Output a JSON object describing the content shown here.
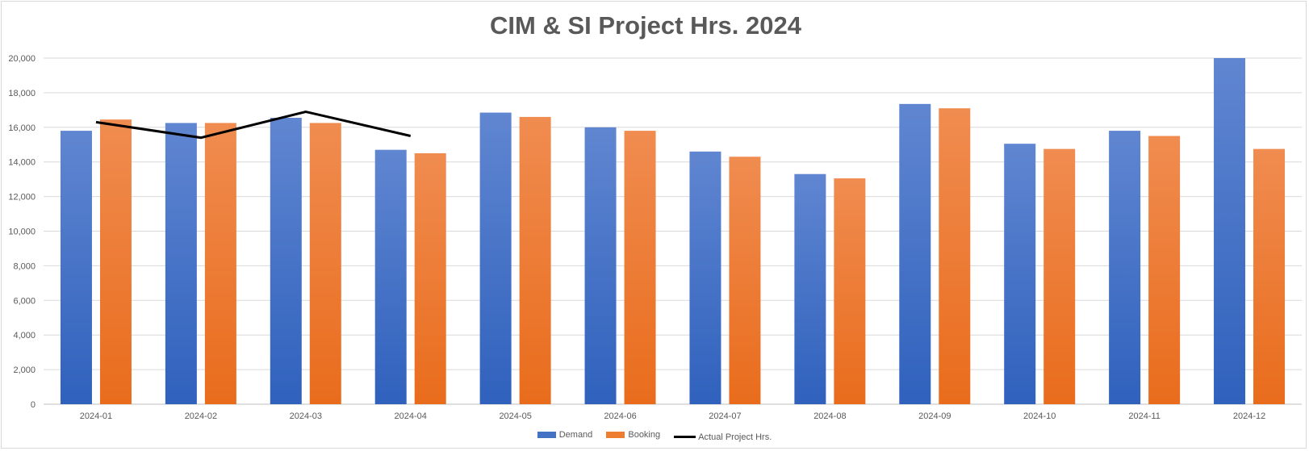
{
  "chart_data": {
    "type": "bar",
    "title": "CIM & SI Project Hrs. 2024",
    "xlabel": "",
    "ylabel": "",
    "ylim": [
      0,
      20000
    ],
    "yticks": [
      "0",
      "2,000",
      "4,000",
      "6,000",
      "8,000",
      "10,000",
      "12,000",
      "14,000",
      "16,000",
      "18,000",
      "20,000"
    ],
    "ytick_values": [
      0,
      2000,
      4000,
      6000,
      8000,
      10000,
      12000,
      14000,
      16000,
      18000,
      20000
    ],
    "grid": true,
    "legend_position": "bottom",
    "categories": [
      "2024-01",
      "2024-02",
      "2024-03",
      "2024-04",
      "2024-05",
      "2024-06",
      "2024-07",
      "2024-08",
      "2024-09",
      "2024-10",
      "2024-11",
      "2024-12"
    ],
    "series": [
      {
        "name": "Demand",
        "type": "bar",
        "color": "#4472C4",
        "values": [
          15800,
          16250,
          16550,
          14700,
          16850,
          16000,
          14600,
          13300,
          17350,
          15050,
          15800,
          20000
        ]
      },
      {
        "name": "Booking",
        "type": "bar",
        "color": "#ED7D31",
        "values": [
          16450,
          16250,
          16250,
          14500,
          16600,
          15800,
          14300,
          13050,
          17100,
          14750,
          15500,
          14750
        ]
      },
      {
        "name": "Actual Project Hrs.",
        "type": "line",
        "color": "#000000",
        "values": [
          16300,
          15400,
          16900,
          15500,
          null,
          null,
          null,
          null,
          null,
          null,
          null,
          null
        ]
      }
    ]
  }
}
